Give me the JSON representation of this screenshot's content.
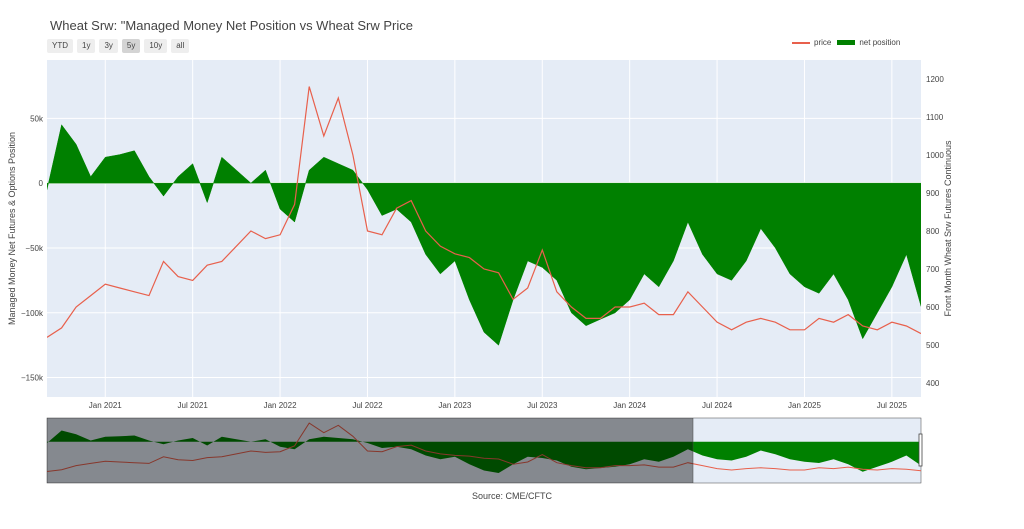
{
  "title": "Wheat Srw: \"Managed Money Net Position vs Wheat Srw Price",
  "range_buttons": [
    "YTD",
    "1y",
    "3y",
    "5y",
    "10y",
    "all"
  ],
  "active_range": "5y",
  "source": "Source: CME/CFTC",
  "chart_data": {
    "type": "line+area",
    "x_tick_labels": [
      "Jan 2021",
      "Jul 2021",
      "Jan 2022",
      "Jul 2022",
      "Jan 2023",
      "Jul 2023",
      "Jan 2024",
      "Jul 2024",
      "Jan 2025",
      "Jul 2025"
    ],
    "x_range": [
      "2020-09",
      "2025-09"
    ],
    "y_left": {
      "label": "Managed Money Net Futures & Options Position",
      "ticks": [
        50000,
        0,
        -50000,
        -100000,
        -150000
      ],
      "tick_labels": [
        "50k",
        "0",
        "−50k",
        "−100k",
        "−150k"
      ],
      "range": [
        -165000,
        95000
      ]
    },
    "y_right": {
      "label": "Front Month Wheat Srw Futures Continuous",
      "ticks": [
        400,
        500,
        600,
        700,
        800,
        900,
        1000,
        1100,
        1200
      ],
      "range": [
        363,
        1250
      ]
    },
    "grid": true,
    "legend_position": "top-right",
    "series": [
      {
        "name": "price",
        "axis": "right",
        "color": "#e8604c",
        "x": [
          "2020-09",
          "2020-10",
          "2020-11",
          "2020-12",
          "2021-01",
          "2021-02",
          "2021-03",
          "2021-04",
          "2021-05",
          "2021-06",
          "2021-07",
          "2021-08",
          "2021-09",
          "2021-10",
          "2021-11",
          "2021-12",
          "2022-01",
          "2022-02",
          "2022-03",
          "2022-04",
          "2022-05",
          "2022-06",
          "2022-07",
          "2022-08",
          "2022-09",
          "2022-10",
          "2022-11",
          "2022-12",
          "2023-01",
          "2023-02",
          "2023-03",
          "2023-04",
          "2023-05",
          "2023-06",
          "2023-07",
          "2023-08",
          "2023-09",
          "2023-10",
          "2023-11",
          "2023-12",
          "2024-01",
          "2024-02",
          "2024-03",
          "2024-04",
          "2024-05",
          "2024-06",
          "2024-07",
          "2024-08",
          "2024-09",
          "2024-10",
          "2024-11",
          "2024-12",
          "2025-01",
          "2025-02",
          "2025-03",
          "2025-04",
          "2025-05",
          "2025-06",
          "2025-07",
          "2025-08",
          "2025-09"
        ],
        "values": [
          520,
          545,
          600,
          630,
          660,
          650,
          640,
          630,
          720,
          680,
          670,
          710,
          720,
          760,
          800,
          780,
          790,
          870,
          1180,
          1050,
          1150,
          1000,
          800,
          790,
          860,
          880,
          800,
          760,
          740,
          730,
          700,
          690,
          620,
          650,
          750,
          640,
          600,
          570,
          570,
          600,
          600,
          610,
          580,
          580,
          640,
          600,
          560,
          540,
          560,
          570,
          560,
          540,
          540,
          570,
          560,
          580,
          550,
          540,
          560,
          550,
          530
        ]
      },
      {
        "name": "net position",
        "axis": "left",
        "color": "#008000",
        "x": [
          "2020-09",
          "2020-10",
          "2020-11",
          "2020-12",
          "2021-01",
          "2021-02",
          "2021-03",
          "2021-04",
          "2021-05",
          "2021-06",
          "2021-07",
          "2021-08",
          "2021-09",
          "2021-10",
          "2021-11",
          "2021-12",
          "2022-01",
          "2022-02",
          "2022-03",
          "2022-04",
          "2022-05",
          "2022-06",
          "2022-07",
          "2022-08",
          "2022-09",
          "2022-10",
          "2022-11",
          "2022-12",
          "2023-01",
          "2023-02",
          "2023-03",
          "2023-04",
          "2023-05",
          "2023-06",
          "2023-07",
          "2023-08",
          "2023-09",
          "2023-10",
          "2023-11",
          "2023-12",
          "2024-01",
          "2024-02",
          "2024-03",
          "2024-04",
          "2024-05",
          "2024-06",
          "2024-07",
          "2024-08",
          "2024-09",
          "2024-10",
          "2024-11",
          "2024-12",
          "2025-01",
          "2025-02",
          "2025-03",
          "2025-04",
          "2025-05",
          "2025-06",
          "2025-07",
          "2025-08",
          "2025-09"
        ],
        "values": [
          -5000,
          45000,
          30000,
          5000,
          20000,
          22000,
          25000,
          5000,
          -10000,
          5000,
          15000,
          -15000,
          20000,
          10000,
          0,
          10000,
          -20000,
          -30000,
          10000,
          20000,
          15000,
          10000,
          -5000,
          -25000,
          -20000,
          -30000,
          -55000,
          -70000,
          -60000,
          -90000,
          -115000,
          -125000,
          -90000,
          -60000,
          -65000,
          -75000,
          -100000,
          -110000,
          -105000,
          -100000,
          -90000,
          -70000,
          -80000,
          -60000,
          -30000,
          -55000,
          -70000,
          -75000,
          -60000,
          -35000,
          -50000,
          -70000,
          -80000,
          -85000,
          -70000,
          -90000,
          -120000,
          -100000,
          -80000,
          -55000,
          -95000
        ]
      }
    ]
  }
}
